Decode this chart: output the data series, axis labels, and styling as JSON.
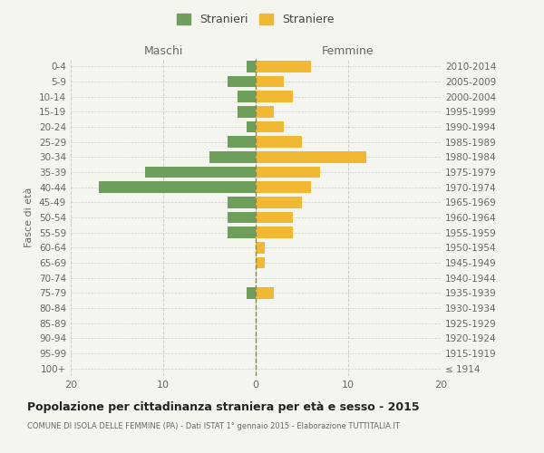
{
  "age_groups": [
    "100+",
    "95-99",
    "90-94",
    "85-89",
    "80-84",
    "75-79",
    "70-74",
    "65-69",
    "60-64",
    "55-59",
    "50-54",
    "45-49",
    "40-44",
    "35-39",
    "30-34",
    "25-29",
    "20-24",
    "15-19",
    "10-14",
    "5-9",
    "0-4"
  ],
  "birth_years": [
    "≤ 1914",
    "1915-1919",
    "1920-1924",
    "1925-1929",
    "1930-1934",
    "1935-1939",
    "1940-1944",
    "1945-1949",
    "1950-1954",
    "1955-1959",
    "1960-1964",
    "1965-1969",
    "1970-1974",
    "1975-1979",
    "1980-1984",
    "1985-1989",
    "1990-1994",
    "1995-1999",
    "2000-2004",
    "2005-2009",
    "2010-2014"
  ],
  "males": [
    0,
    0,
    0,
    0,
    0,
    1,
    0,
    0,
    0,
    3,
    3,
    3,
    17,
    12,
    5,
    3,
    1,
    2,
    2,
    3,
    1
  ],
  "females": [
    0,
    0,
    0,
    0,
    0,
    2,
    0,
    1,
    1,
    4,
    4,
    5,
    6,
    7,
    12,
    5,
    3,
    2,
    4,
    3,
    6
  ],
  "male_color": "#6d9e5a",
  "female_color": "#f0b833",
  "bg_color": "#f5f5f0",
  "grid_color": "#cccccc",
  "center_line_color": "#888855",
  "title": "Popolazione per cittadinanza straniera per età e sesso - 2015",
  "subtitle": "COMUNE DI ISOLA DELLE FEMMINE (PA) - Dati ISTAT 1° gennaio 2015 - Elaborazione TUTTITALIA.IT",
  "ylabel_left": "Fasce di età",
  "xlabel_maschi": "Maschi",
  "xlabel_femmine": "Femmine",
  "legend_stranieri": "Stranieri",
  "legend_straniere": "Straniere",
  "xlim": 20
}
